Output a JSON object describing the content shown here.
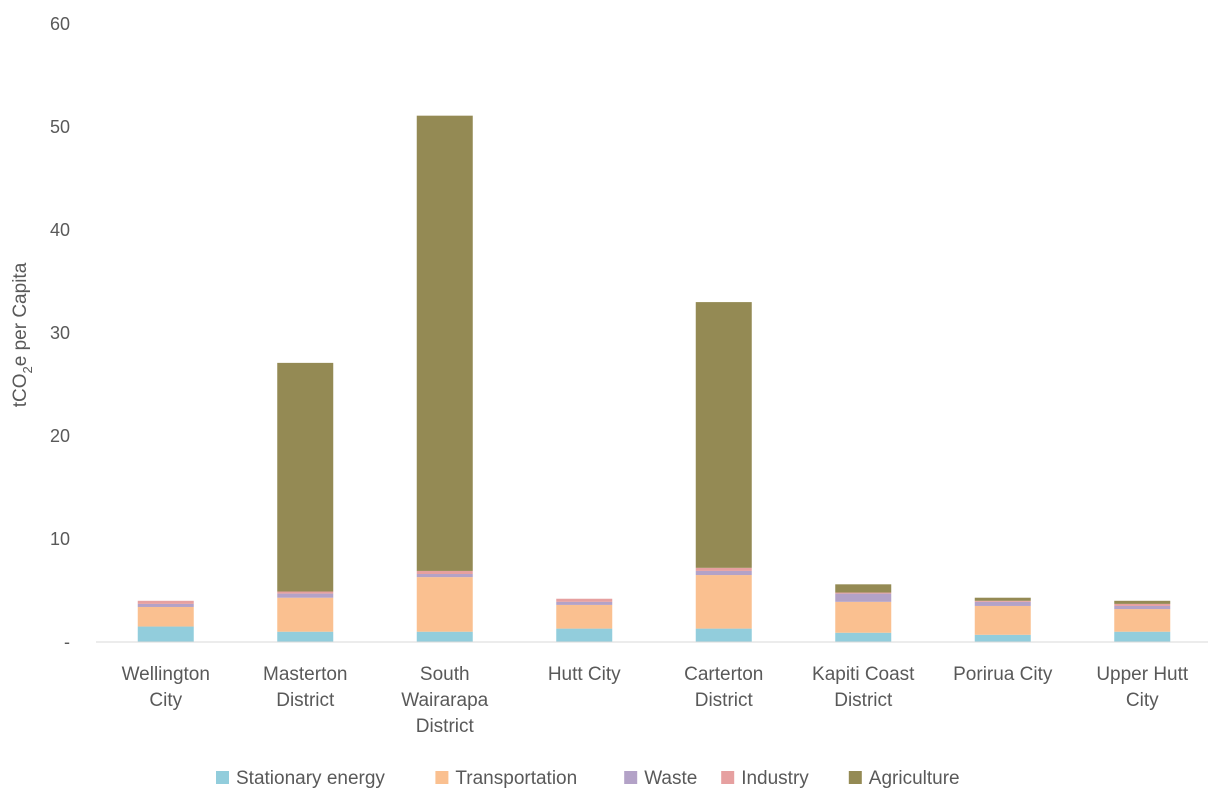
{
  "chart_data": {
    "type": "bar",
    "stacked": true,
    "ylabel": {
      "prefix": "tCO",
      "sub": "2",
      "suffix": "e per Capita"
    },
    "ylim": [
      0,
      60
    ],
    "yticks": [
      {
        "value": 0,
        "label": "-"
      },
      {
        "value": 10,
        "label": "10"
      },
      {
        "value": 20,
        "label": "20"
      },
      {
        "value": 30,
        "label": "30"
      },
      {
        "value": 40,
        "label": "40"
      },
      {
        "value": 50,
        "label": "50"
      },
      {
        "value": 60,
        "label": "60"
      }
    ],
    "grid": false,
    "legend_position": "bottom",
    "categories": [
      [
        "Wellington",
        "City"
      ],
      [
        "Masterton",
        "District"
      ],
      [
        "South",
        "Wairarapa",
        "District"
      ],
      [
        "Hutt City"
      ],
      [
        "Carterton",
        "District"
      ],
      [
        "Kapiti Coast",
        "District"
      ],
      [
        "Porirua City"
      ],
      [
        "Upper Hutt",
        "City"
      ]
    ],
    "series": [
      {
        "name": "Stationary energy",
        "color": "#92CDDC",
        "values": [
          1.5,
          1.0,
          1.0,
          1.3,
          1.3,
          0.9,
          0.7,
          1.0
        ]
      },
      {
        "name": "Transportation",
        "color": "#FAC090",
        "values": [
          1.9,
          3.3,
          5.3,
          2.3,
          5.2,
          3.0,
          2.8,
          2.2
        ]
      },
      {
        "name": "Waste",
        "color": "#B3A2C7",
        "values": [
          0.3,
          0.4,
          0.3,
          0.3,
          0.4,
          0.8,
          0.4,
          0.3
        ]
      },
      {
        "name": "Industry",
        "color": "#E6A0A0",
        "values": [
          0.3,
          0.2,
          0.3,
          0.3,
          0.3,
          0.1,
          0.1,
          0.2
        ]
      },
      {
        "name": "Agriculture",
        "color": "#948A54",
        "values": [
          0.0,
          22.2,
          44.2,
          0.0,
          25.8,
          0.8,
          0.3,
          0.3
        ]
      }
    ]
  }
}
